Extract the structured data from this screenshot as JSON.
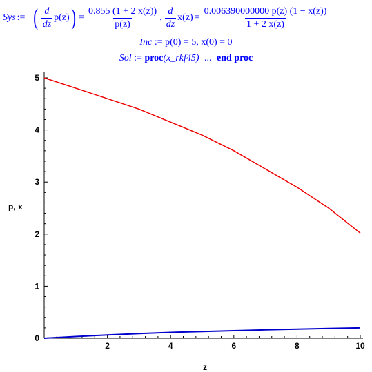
{
  "equations": {
    "sys_label": "Sys",
    "assign": ":=",
    "minus": "−",
    "d": "d",
    "dz": "dz",
    "p_of_z": "p(z)",
    "x_of_z": "x(z)",
    "equals": "=",
    "comma": ",",
    "frac1_num": "0.855 (1 + 2 x(z))",
    "frac1_den": "p(z)",
    "frac2_num": "0.006390000000 p(z) (1 − x(z))",
    "frac2_den": "1 + 2 x(z)",
    "inc_label": "Inc",
    "inc_value": "p(0) = 5, x(0) = 0",
    "sol_label": "Sol",
    "sol_proc": "proc",
    "sol_arg": "(x_rkf45)",
    "sol_dots": "...",
    "sol_end": "end proc"
  },
  "chart_data": {
    "type": "line",
    "xlabel": "z",
    "ylabel": "p, x",
    "xlim": [
      0,
      10
    ],
    "ylim": [
      0,
      5
    ],
    "x_ticks": [
      "2",
      "4",
      "6",
      "8",
      "10"
    ],
    "y_ticks": [
      "0",
      "1",
      "2",
      "3",
      "4",
      "5"
    ],
    "grid": false,
    "legend": "none",
    "series": [
      {
        "color": "#ee0000",
        "x": [
          0,
          1,
          2,
          3,
          4,
          5,
          6,
          7,
          8,
          9,
          10
        ],
        "values": [
          5.0,
          4.8,
          4.6,
          4.4,
          4.15,
          3.9,
          3.6,
          3.25,
          2.9,
          2.5,
          2.02
        ]
      },
      {
        "color": "#0000cc",
        "x": [
          0,
          1,
          2,
          3,
          4,
          5,
          6,
          7,
          8,
          9,
          10
        ],
        "values": [
          0.0,
          0.033,
          0.064,
          0.09,
          0.112,
          0.13,
          0.146,
          0.161,
          0.175,
          0.188,
          0.2
        ]
      }
    ]
  }
}
